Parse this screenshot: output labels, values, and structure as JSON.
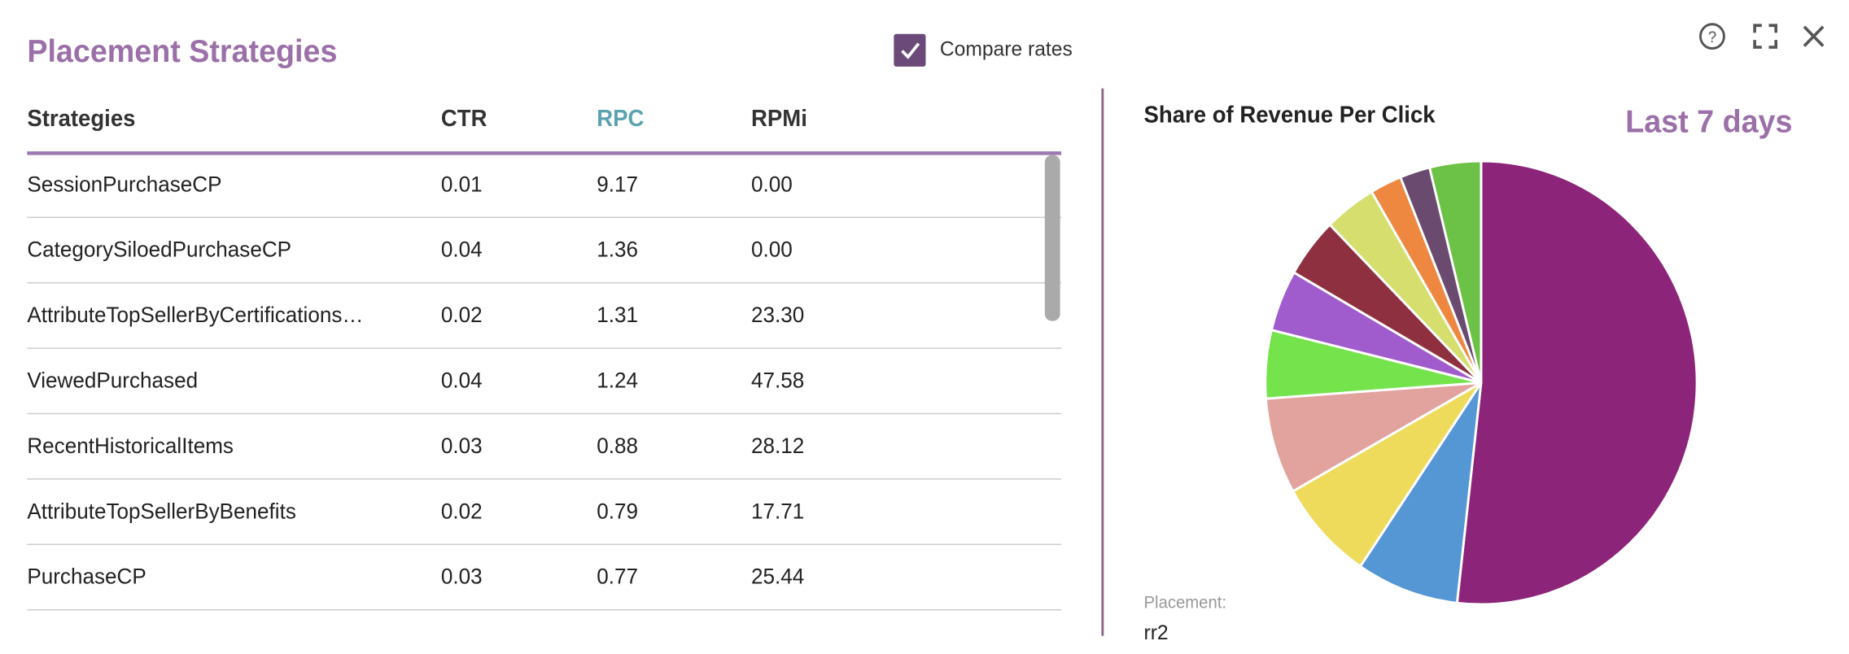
{
  "header": {
    "title": "Placement Strategies",
    "compare_label": "Compare rates",
    "compare_checked": true,
    "period": "Last 7 days"
  },
  "table": {
    "columns": [
      "Strategies",
      "CTR",
      "RPC",
      "RPMi"
    ],
    "sorted_column": 2,
    "rows": [
      [
        "SessionPurchaseCP",
        "0.01",
        "9.17",
        "0.00"
      ],
      [
        "CategorySiloedPurchaseCP",
        "0.04",
        "1.36",
        "0.00"
      ],
      [
        "AttributeTopSellerByCertifications…",
        "0.02",
        "1.31",
        "23.30"
      ],
      [
        "ViewedPurchased",
        "0.04",
        "1.24",
        "47.58"
      ],
      [
        "RecentHistoricalItems",
        "0.03",
        "0.88",
        "28.12"
      ],
      [
        "AttributeTopSellerByBenefits",
        "0.02",
        "0.79",
        "17.71"
      ],
      [
        "PurchaseCP",
        "0.03",
        "0.77",
        "25.44"
      ]
    ]
  },
  "chart_data": {
    "type": "pie",
    "title": "Share of Revenue Per Click",
    "values": [
      9.17,
      1.36,
      1.31,
      1.24,
      0.88,
      0.79,
      0.77,
      0.69,
      0.42,
      0.4,
      0.68
    ],
    "colors": [
      "#8c2479",
      "#5597d4",
      "#eedb5c",
      "#e2a29d",
      "#74e34c",
      "#a05ccd",
      "#8e3040",
      "#d6de6e",
      "#ee8840",
      "#6b4a70",
      "#6cc246"
    ]
  },
  "placement": {
    "label": "Placement:",
    "value": "rr2"
  }
}
